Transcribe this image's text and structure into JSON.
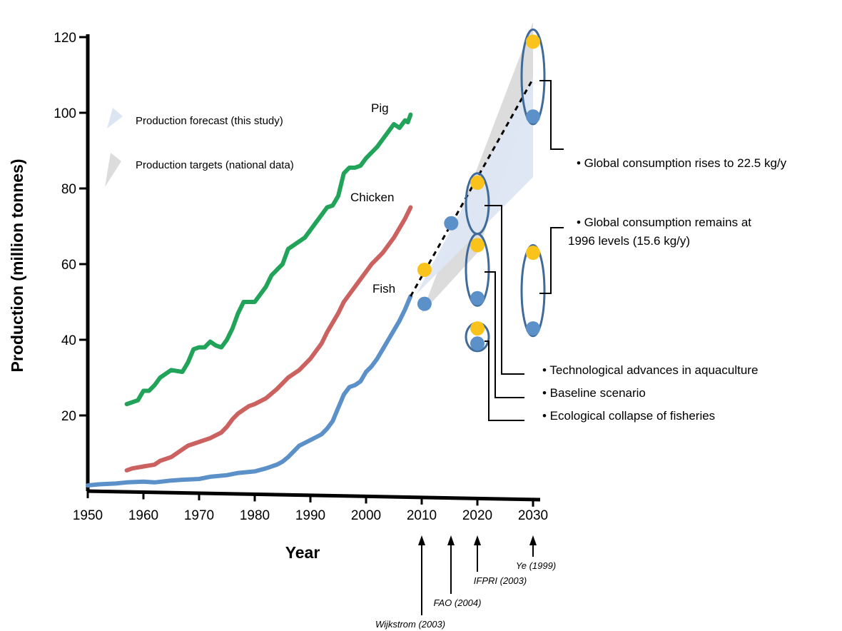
{
  "chart_data": {
    "type": "line",
    "xlabel": "Year",
    "ylabel": "Production (million tonnes)",
    "xlim": [
      1950,
      2030
    ],
    "ylim": [
      0,
      120
    ],
    "x_ticks": [
      1950,
      1960,
      1970,
      1980,
      1990,
      2000,
      2010,
      2020,
      2030
    ],
    "y_ticks": [
      20,
      40,
      60,
      80,
      100,
      120
    ],
    "series": [
      {
        "name": "Pig",
        "color": "#22a35a",
        "points": [
          [
            1957,
            23
          ],
          [
            1959,
            24
          ],
          [
            1960,
            26.5
          ],
          [
            1961,
            26.5
          ],
          [
            1962,
            28
          ],
          [
            1963,
            30
          ],
          [
            1965,
            32
          ],
          [
            1967,
            31.5
          ],
          [
            1968,
            34
          ],
          [
            1969,
            37.5
          ],
          [
            1970,
            38
          ],
          [
            1971,
            38
          ],
          [
            1972,
            39.5
          ],
          [
            1973,
            38.5
          ],
          [
            1974,
            38
          ],
          [
            1975,
            40
          ],
          [
            1976,
            43
          ],
          [
            1977,
            47
          ],
          [
            1978,
            50
          ],
          [
            1980,
            50
          ],
          [
            1981,
            52
          ],
          [
            1982,
            54
          ],
          [
            1983,
            57
          ],
          [
            1984,
            58.5
          ],
          [
            1985,
            60
          ],
          [
            1986,
            64
          ],
          [
            1987,
            65
          ],
          [
            1989,
            67
          ],
          [
            1990,
            69
          ],
          [
            1991,
            71
          ],
          [
            1992,
            73
          ],
          [
            1993,
            75
          ],
          [
            1994,
            75.5
          ],
          [
            1995,
            78
          ],
          [
            1996,
            84
          ],
          [
            1997,
            85.5
          ],
          [
            1998,
            85.5
          ],
          [
            1999,
            86
          ],
          [
            2000,
            88
          ],
          [
            2001,
            89.5
          ],
          [
            2002,
            91
          ],
          [
            2003,
            93
          ],
          [
            2004,
            95
          ],
          [
            2005,
            97
          ],
          [
            2006,
            96
          ],
          [
            2007,
            98
          ],
          [
            2007.5,
            97.5
          ],
          [
            2008,
            99.5
          ]
        ]
      },
      {
        "name": "Chicken",
        "color": "#cc6260",
        "points": [
          [
            1957,
            5.5
          ],
          [
            1958,
            6
          ],
          [
            1960,
            6.5
          ],
          [
            1962,
            7
          ],
          [
            1963,
            8
          ],
          [
            1965,
            9
          ],
          [
            1966,
            10
          ],
          [
            1968,
            12
          ],
          [
            1970,
            13
          ],
          [
            1972,
            14
          ],
          [
            1974,
            15.5
          ],
          [
            1975,
            17
          ],
          [
            1976,
            19
          ],
          [
            1977,
            20.5
          ],
          [
            1978,
            21.5
          ],
          [
            1979,
            22.5
          ],
          [
            1980,
            23
          ],
          [
            1982,
            24.5
          ],
          [
            1984,
            27
          ],
          [
            1985,
            28.5
          ],
          [
            1986,
            30
          ],
          [
            1988,
            32
          ],
          [
            1990,
            35
          ],
          [
            1992,
            39
          ],
          [
            1993,
            42
          ],
          [
            1994,
            44.5
          ],
          [
            1995,
            47
          ],
          [
            1996,
            50
          ],
          [
            1997,
            52
          ],
          [
            1998,
            54
          ],
          [
            1999,
            56
          ],
          [
            2000,
            58
          ],
          [
            2001,
            60
          ],
          [
            2002,
            61.5
          ],
          [
            2003,
            63
          ],
          [
            2004,
            65
          ],
          [
            2005,
            67
          ],
          [
            2006,
            69.5
          ],
          [
            2007,
            72
          ],
          [
            2008,
            75
          ]
        ]
      },
      {
        "name": "Fish",
        "color": "#5b90c8",
        "points": [
          [
            1950,
            1.5
          ],
          [
            1952,
            1.8
          ],
          [
            1955,
            2
          ],
          [
            1957,
            2.3
          ],
          [
            1960,
            2.5
          ],
          [
            1962,
            2.3
          ],
          [
            1965,
            2.8
          ],
          [
            1967,
            3
          ],
          [
            1970,
            3.2
          ],
          [
            1972,
            3.8
          ],
          [
            1975,
            4.2
          ],
          [
            1977,
            4.8
          ],
          [
            1980,
            5.2
          ],
          [
            1982,
            6
          ],
          [
            1984,
            7
          ],
          [
            1985,
            7.8
          ],
          [
            1986,
            9
          ],
          [
            1987,
            10.5
          ],
          [
            1988,
            12
          ],
          [
            1990,
            13.5
          ],
          [
            1992,
            15
          ],
          [
            1993,
            16.5
          ],
          [
            1994,
            18.5
          ],
          [
            1995,
            22
          ],
          [
            1996,
            25.5
          ],
          [
            1997,
            27.5
          ],
          [
            1998,
            28
          ],
          [
            1999,
            29
          ],
          [
            2000,
            31.5
          ],
          [
            2001,
            33
          ],
          [
            2002,
            35
          ],
          [
            2003,
            37.5
          ],
          [
            2004,
            40
          ],
          [
            2005,
            42.5
          ],
          [
            2006,
            45
          ],
          [
            2007,
            48
          ],
          [
            2008,
            51.5
          ]
        ]
      }
    ],
    "forecast_line": {
      "style": "dashed",
      "points": [
        [
          2008,
          51.5
        ],
        [
          2030,
          109
        ]
      ]
    },
    "forecast_band": {
      "fill": "#dce6f2",
      "points": [
        [
          2009,
          52
        ],
        [
          2030,
          109.5
        ],
        [
          2030,
          83
        ]
      ],
      "extra_upper": [
        2030,
        113
      ]
    },
    "target_band": {
      "fill": "#dcdcdc",
      "points": [
        [
          2010,
          47
        ],
        [
          2030,
          124
        ],
        [
          2030,
          106
        ],
        [
          2020,
          63
        ]
      ]
    },
    "markers": [
      {
        "year": 2010.5,
        "value": 49.5,
        "color": "#5b90c8"
      },
      {
        "year": 2010.5,
        "value": 58.5,
        "color": "#f9c31b"
      },
      {
        "year": 2015.3,
        "value": 70.8,
        "color": "#5b90c8"
      },
      {
        "year": 2020,
        "value": 81.5,
        "color": "#f9c31b"
      },
      {
        "year": 2020,
        "value": 65,
        "color": "#f9c31b"
      },
      {
        "year": 2020,
        "value": 51,
        "color": "#5b90c8"
      },
      {
        "year": 2020,
        "value": 43,
        "color": "#f9c31b"
      },
      {
        "year": 2020,
        "value": 39,
        "color": "#5b90c8"
      },
      {
        "year": 2030,
        "value": 118.8,
        "color": "#f9c31b"
      },
      {
        "year": 2030,
        "value": 99,
        "color": "#5b90c8"
      },
      {
        "year": 2030,
        "value": 63,
        "color": "#f9c31b"
      },
      {
        "year": 2030,
        "value": 43,
        "color": "#5b90c8"
      }
    ],
    "ellipses": [
      {
        "year": 2030,
        "from": 97,
        "to": 122
      },
      {
        "year": 2020,
        "from": 68,
        "to": 84
      },
      {
        "year": 2020,
        "from": 49,
        "to": 68
      },
      {
        "year": 2020,
        "from": 37,
        "to": 44.5
      },
      {
        "year": 2030,
        "from": 41,
        "to": 65
      }
    ],
    "legend": [
      {
        "label": "Production forecast (this study)",
        "color": "#dce6f2"
      },
      {
        "label": "Production targets (national data)",
        "color": "#dcdcdc"
      }
    ],
    "annotations": [
      {
        "text": "• Global consumption rises to 22.5 kg/y"
      },
      {
        "text": "• Global consumption remains at",
        "line2": "1996 levels (15.6 kg/y)"
      },
      {
        "text": "• Technological advances in aquaculture"
      },
      {
        "text": "• Baseline scenario"
      },
      {
        "text": "• Ecological collapse of fisheries"
      }
    ],
    "references": [
      {
        "text": "Wijkstrom (2003)",
        "year": 2010
      },
      {
        "text": "FAO (2004)",
        "year": 2015
      },
      {
        "text": "IFPRI (2003)",
        "year": 2020
      },
      {
        "text": "Ye (1999)",
        "year": 2030
      }
    ]
  }
}
